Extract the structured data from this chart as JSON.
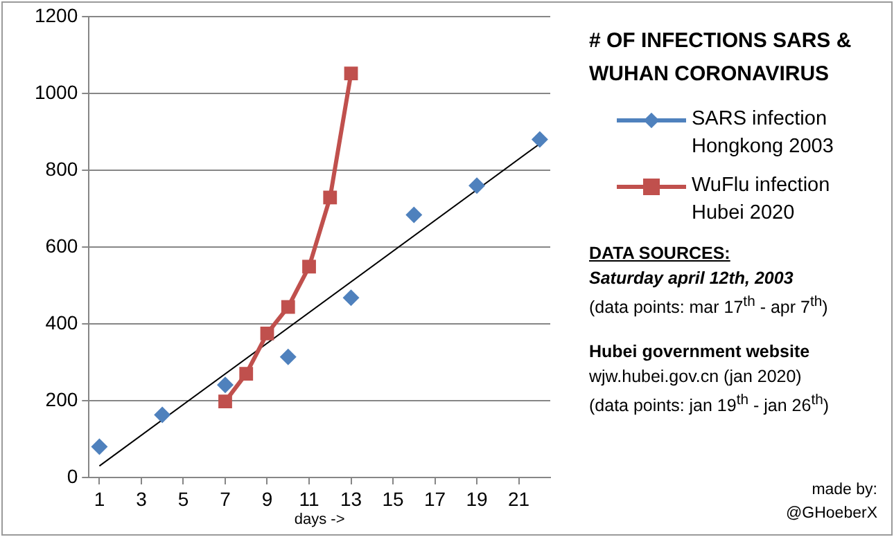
{
  "chart_data": {
    "type": "scatter",
    "title": "# OF INFECTIONS SARS & WUHAN CORONAVIRUS",
    "xlabel": "days ->",
    "series": [
      {
        "name": "SARS infection Hongkong 2003",
        "type": "scatter",
        "color": "#4f81bd",
        "marker": "diamond",
        "x": [
          1,
          4,
          7,
          10,
          13,
          16,
          19,
          22
        ],
        "values": [
          80,
          163,
          241,
          314,
          468,
          684,
          760,
          880
        ]
      },
      {
        "name": "WuFlu infection Hubei 2020",
        "type": "line",
        "color": "#c0504d",
        "marker": "square",
        "x": [
          7,
          8,
          9,
          10,
          11,
          12,
          13
        ],
        "values": [
          198,
          270,
          375,
          444,
          549,
          729,
          1052
        ]
      },
      {
        "type": "line",
        "color": "#000000",
        "marker": "none",
        "line_style": "solid",
        "x": [
          1,
          22
        ],
        "values": [
          30,
          869
        ]
      }
    ],
    "xlim": [
      0.5,
      22.5
    ],
    "xticks": [
      1,
      3,
      5,
      7,
      9,
      11,
      13,
      15,
      17,
      19,
      21
    ],
    "ylim": [
      0,
      1200
    ],
    "yticks": [
      0,
      200,
      400,
      600,
      800,
      1000,
      1200
    ],
    "grid": "y",
    "legend": "right",
    "annotations": [
      "DATA SOURCES:",
      "Saturday april 12th, 2003",
      "(data points: mar 17$^{th}$  - apr 7$^{th}$)",
      "Hubei government website",
      "wjw.hubei.gov.cn  (jan 2020)",
      "(data points: jan 19$^{th}$ - jan 26$^{th}$)",
      "made by:",
      "@GHoeberX"
    ]
  }
}
